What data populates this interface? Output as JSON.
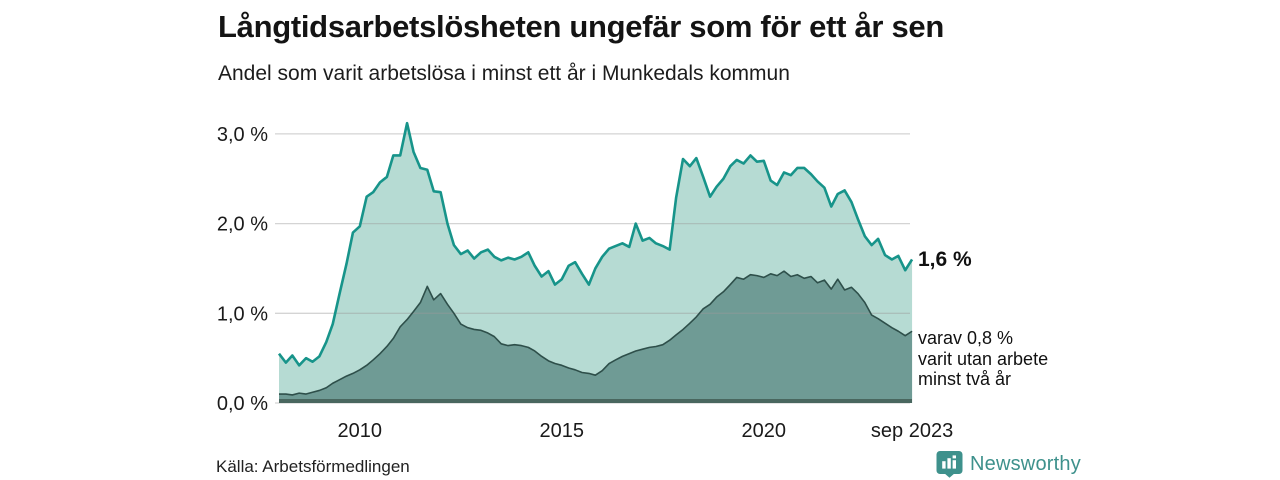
{
  "header": {
    "title": "Långtidsarbetslösheten ungefär som för ett år sen",
    "subtitle": "Andel som varit arbetslösa i minst ett år i Munkedals kommun"
  },
  "annotations": {
    "latest_total": "1,6 %",
    "two_years_lines": [
      "varav 0,8 %",
      "varit utan arbete",
      "minst två år"
    ]
  },
  "footer": {
    "source": "Källa: Arbetsförmedlingen",
    "brand": "Newsworthy"
  },
  "colors": {
    "line_one_year": "#17948a",
    "area_one_year": "#b6dbd3",
    "line_two_years": "#2e4f4a",
    "area_two_years": "#6f9b95",
    "baseline": "#49675f",
    "gridline": "#9a9a9a",
    "tick_text": "#1a1a1a",
    "brand_teal": "#3e918c"
  },
  "chart_data": {
    "type": "area",
    "title": "Långtidsarbetslösheten ungefär som för ett år sen",
    "subtitle": "Andel som varit arbetslösa i minst ett år i Munkedals kommun",
    "unit": "%",
    "xlabel": "",
    "ylabel": "",
    "xlim": [
      2008,
      2023.75
    ],
    "ylim": [
      0,
      3.19
    ],
    "grid": true,
    "legend_position": "none",
    "yticks": [
      {
        "value": 0,
        "label": "0,0 %"
      },
      {
        "value": 1,
        "label": "1,0 %"
      },
      {
        "value": 2,
        "label": "2,0 %"
      },
      {
        "value": 3,
        "label": "3,0 %"
      }
    ],
    "xticks": [
      {
        "value": 2010,
        "label": "2010"
      },
      {
        "value": 2015,
        "label": "2015"
      },
      {
        "value": 2020,
        "label": "2020"
      },
      {
        "value": 2023.67,
        "label": "sep 2023"
      }
    ],
    "x": [
      2008,
      2008.17,
      2008.33,
      2008.5,
      2008.67,
      2008.83,
      2009,
      2009.17,
      2009.33,
      2009.5,
      2009.67,
      2009.83,
      2010,
      2010.17,
      2010.33,
      2010.5,
      2010.67,
      2010.83,
      2011,
      2011.17,
      2011.33,
      2011.5,
      2011.67,
      2011.83,
      2012,
      2012.17,
      2012.33,
      2012.5,
      2012.67,
      2012.83,
      2013,
      2013.17,
      2013.33,
      2013.5,
      2013.67,
      2013.83,
      2014,
      2014.17,
      2014.33,
      2014.5,
      2014.67,
      2014.83,
      2015,
      2015.17,
      2015.33,
      2015.5,
      2015.67,
      2015.83,
      2016,
      2016.17,
      2016.33,
      2016.5,
      2016.67,
      2016.83,
      2017,
      2017.17,
      2017.33,
      2017.5,
      2017.67,
      2017.83,
      2018,
      2018.17,
      2018.33,
      2018.5,
      2018.67,
      2018.83,
      2019,
      2019.17,
      2019.33,
      2019.5,
      2019.67,
      2019.83,
      2020,
      2020.17,
      2020.33,
      2020.5,
      2020.67,
      2020.83,
      2021,
      2021.17,
      2021.33,
      2021.5,
      2021.67,
      2021.83,
      2022,
      2022.17,
      2022.33,
      2022.5,
      2022.67,
      2022.83,
      2023,
      2023.17,
      2023.33,
      2023.5,
      2023.67
    ],
    "series": [
      {
        "name": "Andel arbetslösa minst ett år",
        "latest_label": "1,6 %",
        "values": [
          0.55,
          0.45,
          0.53,
          0.42,
          0.5,
          0.46,
          0.52,
          0.68,
          0.88,
          1.22,
          1.55,
          1.9,
          1.97,
          2.3,
          2.35,
          2.46,
          2.52,
          2.76,
          2.76,
          3.12,
          2.8,
          2.62,
          2.6,
          2.36,
          2.35,
          2.0,
          1.76,
          1.66,
          1.7,
          1.61,
          1.68,
          1.71,
          1.63,
          1.59,
          1.62,
          1.6,
          1.63,
          1.68,
          1.53,
          1.41,
          1.47,
          1.32,
          1.38,
          1.53,
          1.57,
          1.44,
          1.32,
          1.5,
          1.63,
          1.72,
          1.75,
          1.78,
          1.74,
          2.0,
          1.81,
          1.84,
          1.78,
          1.75,
          1.71,
          2.29,
          2.72,
          2.64,
          2.73,
          2.52,
          2.3,
          2.41,
          2.5,
          2.64,
          2.71,
          2.67,
          2.76,
          2.69,
          2.7,
          2.48,
          2.43,
          2.57,
          2.54,
          2.62,
          2.62,
          2.55,
          2.47,
          2.4,
          2.19,
          2.33,
          2.37,
          2.24,
          2.05,
          1.86,
          1.76,
          1.83,
          1.65,
          1.6,
          1.64,
          1.48,
          1.6
        ]
      },
      {
        "name": "varav arbetslösa minst två år",
        "latest_label": "varav 0,8 % varit utan arbete minst två år",
        "values": [
          0.1,
          0.1,
          0.09,
          0.11,
          0.1,
          0.12,
          0.14,
          0.17,
          0.22,
          0.26,
          0.3,
          0.33,
          0.37,
          0.42,
          0.48,
          0.55,
          0.63,
          0.72,
          0.85,
          0.93,
          1.02,
          1.12,
          1.3,
          1.15,
          1.22,
          1.1,
          1.0,
          0.88,
          0.84,
          0.82,
          0.81,
          0.78,
          0.74,
          0.66,
          0.64,
          0.65,
          0.64,
          0.62,
          0.58,
          0.52,
          0.47,
          0.44,
          0.42,
          0.39,
          0.37,
          0.34,
          0.33,
          0.31,
          0.36,
          0.44,
          0.48,
          0.52,
          0.55,
          0.58,
          0.6,
          0.62,
          0.63,
          0.65,
          0.7,
          0.76,
          0.82,
          0.89,
          0.96,
          1.05,
          1.1,
          1.18,
          1.24,
          1.32,
          1.4,
          1.38,
          1.43,
          1.42,
          1.4,
          1.44,
          1.42,
          1.47,
          1.41,
          1.43,
          1.39,
          1.41,
          1.34,
          1.37,
          1.27,
          1.38,
          1.26,
          1.29,
          1.22,
          1.12,
          0.98,
          0.94,
          0.89,
          0.84,
          0.8,
          0.75,
          0.8
        ]
      }
    ]
  }
}
